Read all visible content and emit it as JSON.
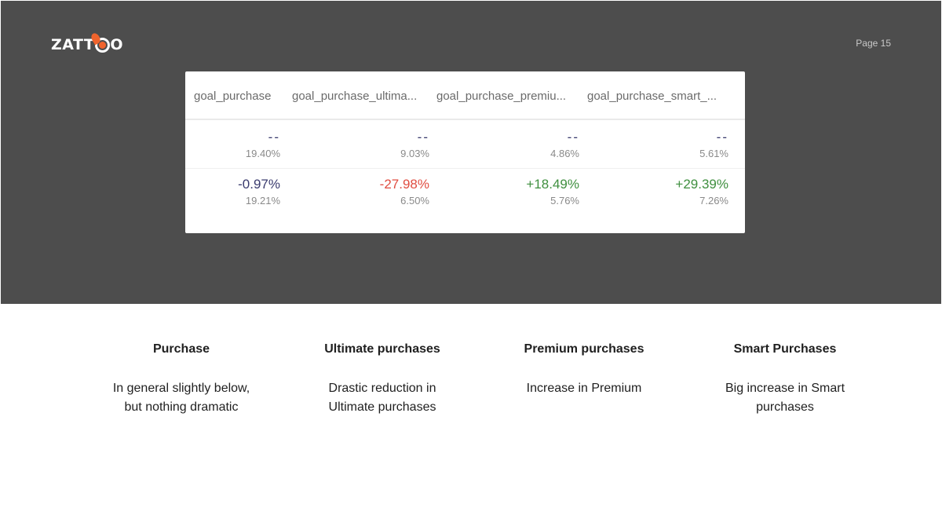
{
  "brand": {
    "logo_text_prefix": "ZATT",
    "logo_text_suffix": "O",
    "accent_color": "#f0642d"
  },
  "page": {
    "label": "Page 15"
  },
  "table": {
    "columns": [
      "goal_purchase",
      "goal_purchase_ultima...",
      "goal_purchase_premiu...",
      "goal_purchase_smart_..."
    ],
    "rows": [
      {
        "cells": [
          {
            "main": "--",
            "sub": "19.40%"
          },
          {
            "main": "--",
            "sub": "9.03%"
          },
          {
            "main": "--",
            "sub": "4.86%"
          },
          {
            "main": "--",
            "sub": "5.61%"
          }
        ]
      },
      {
        "cells": [
          {
            "main": "-0.97%",
            "sub": "19.21%"
          },
          {
            "main": "-27.98%",
            "sub": "6.50%"
          },
          {
            "main": "+18.49%",
            "sub": "5.76%"
          },
          {
            "main": "+29.39%",
            "sub": "7.26%"
          }
        ]
      }
    ],
    "colors": {
      "neutral": "#3a3b6e",
      "negative": "#e04d41",
      "positive": "#3f8f3f"
    }
  },
  "summary": [
    {
      "title": "Purchase",
      "description": "In general slightly below,\nbut nothing dramatic"
    },
    {
      "title": "Ultimate purchases",
      "description": "Drastic reduction in\nUltimate purchases"
    },
    {
      "title": "Premium purchases",
      "description": "Increase in Premium"
    },
    {
      "title": "Smart Purchases",
      "description": "Big increase in Smart\npurchases"
    }
  ]
}
